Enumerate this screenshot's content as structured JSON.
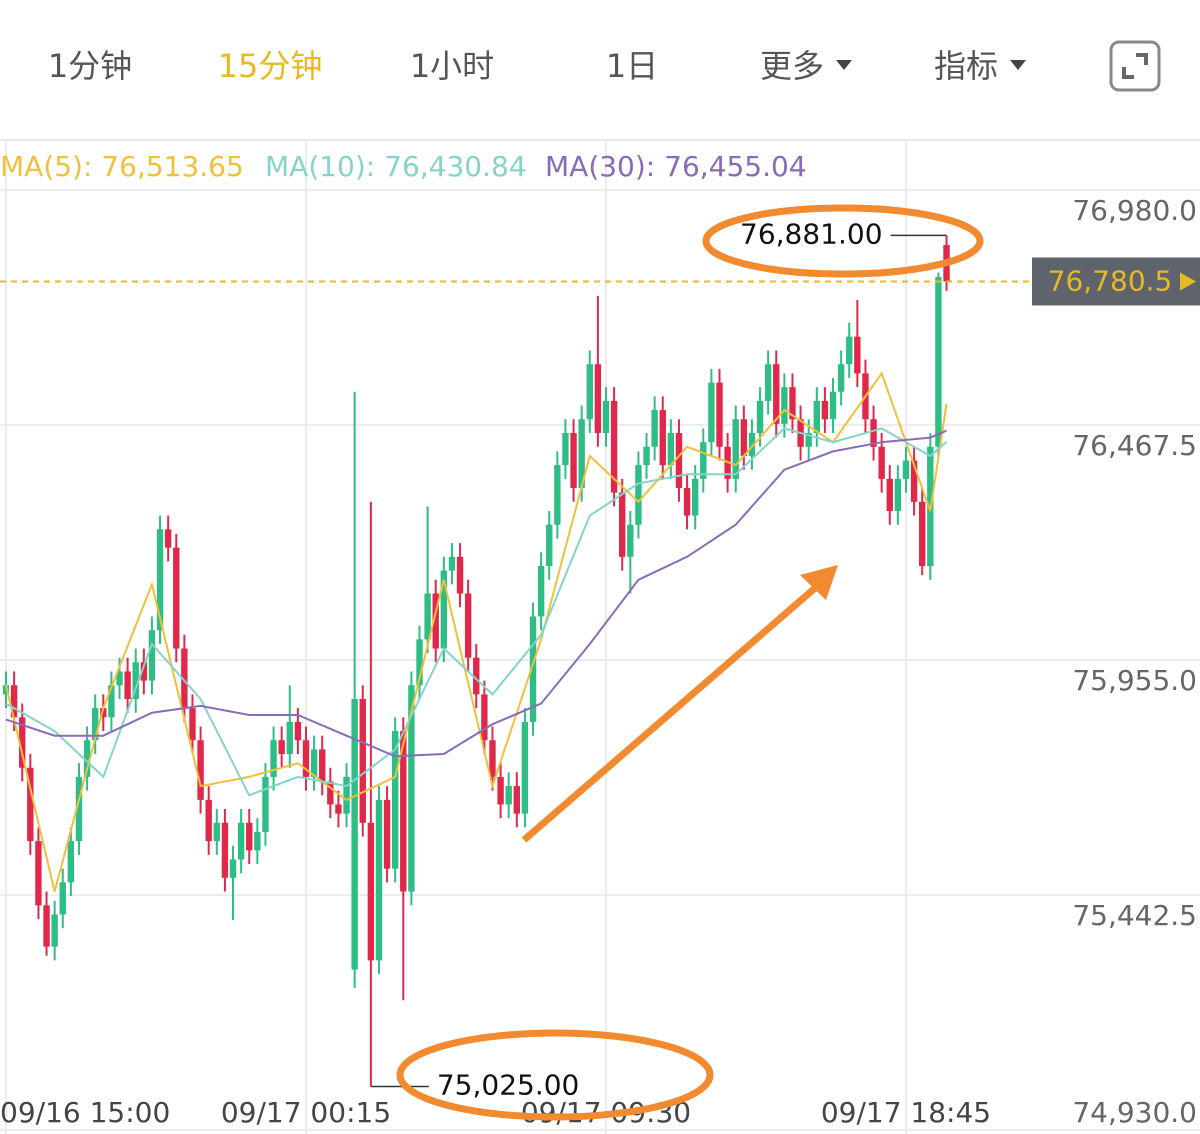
{
  "tabs": [
    "1分钟",
    "15分钟",
    "1小时",
    "1日",
    "更多",
    "指标"
  ],
  "active_tab": 1,
  "chart_data": {
    "type": "candlestick",
    "open": [
      75880,
      75900,
      75830,
      75720,
      75560,
      75420,
      75330,
      75400,
      75470,
      75560,
      75700,
      75780,
      75850,
      75830,
      75900,
      75930,
      75870,
      75950,
      75910,
      76020,
      76240,
      76200,
      75980,
      75850,
      75780,
      75650,
      75560,
      75600,
      75480,
      75520,
      75600,
      75540,
      75580,
      75700,
      75780,
      75750,
      75820,
      75780,
      75700,
      75760,
      75690,
      75640,
      75620,
      75280,
      75870,
      75600,
      75300,
      75650,
      75500,
      75800,
      75450,
      75900,
      76000,
      76100,
      75980,
      76150,
      76180,
      76100,
      75960,
      75880,
      75780,
      75700,
      75640,
      75680,
      75620,
      75820,
      76050,
      76160,
      76250,
      76380,
      76450,
      76330,
      76480,
      76600,
      76450,
      76520,
      76320,
      76180,
      76250,
      76380,
      76420,
      76500,
      76380,
      76450,
      76330,
      76270,
      76350,
      76430,
      76560,
      76420,
      76350,
      76480,
      76400,
      76450,
      76520,
      76600,
      76470,
      76550,
      76480,
      76420,
      76450,
      76520,
      76480,
      76540,
      76600,
      76660,
      76580,
      76480,
      76420,
      76350,
      76280,
      76350,
      76390,
      76300,
      76160,
      76420,
      76860
    ],
    "high": [
      75930,
      75930,
      75860,
      75750,
      75590,
      75450,
      75430,
      75500,
      75590,
      75730,
      75810,
      75880,
      75880,
      75930,
      75960,
      75960,
      75980,
      75980,
      76050,
      76270,
      76270,
      76230,
      76010,
      75880,
      75810,
      75680,
      75630,
      75630,
      75550,
      75630,
      75630,
      75610,
      75730,
      75810,
      75810,
      75900,
      75850,
      75810,
      75790,
      75790,
      75720,
      75670,
      75730,
      76540,
      75900,
      76300,
      75680,
      75680,
      75830,
      75830,
      75930,
      76030,
      76290,
      76130,
      76180,
      76210,
      76210,
      76130,
      75990,
      75910,
      75810,
      75730,
      75710,
      75710,
      75850,
      76080,
      76190,
      76280,
      76410,
      76480,
      76480,
      76510,
      76630,
      76749,
      76550,
      76550,
      76350,
      76280,
      76410,
      76450,
      76530,
      76530,
      76480,
      76480,
      76360,
      76380,
      76460,
      76590,
      76590,
      76450,
      76510,
      76510,
      76480,
      76550,
      76630,
      76630,
      76580,
      76580,
      76510,
      76480,
      76550,
      76550,
      76570,
      76630,
      76690,
      76740,
      76610,
      76510,
      76450,
      76380,
      76380,
      76420,
      76420,
      76330,
      76450,
      76800,
      76881
    ],
    "low": [
      75850,
      75800,
      75690,
      75530,
      75390,
      75310,
      75300,
      75370,
      75440,
      75530,
      75670,
      75750,
      75800,
      75800,
      75870,
      75840,
      75840,
      75880,
      75880,
      75990,
      76170,
      75950,
      75820,
      75750,
      75620,
      75530,
      75530,
      75450,
      75388,
      75490,
      75510,
      75510,
      75550,
      75670,
      75720,
      75720,
      75750,
      75670,
      75670,
      75660,
      75610,
      75590,
      75590,
      75240,
      75570,
      75025,
      75270,
      75470,
      75470,
      75213,
      75420,
      75870,
      75970,
      75950,
      75950,
      76120,
      76070,
      75930,
      75850,
      75750,
      75670,
      75610,
      75610,
      75590,
      75590,
      75790,
      76020,
      76130,
      76220,
      76350,
      76300,
      76300,
      76450,
      76420,
      76420,
      76290,
      76150,
      76100,
      76220,
      76350,
      76390,
      76350,
      76350,
      76300,
      76240,
      76240,
      76320,
      76400,
      76390,
      76320,
      76320,
      76370,
      76370,
      76420,
      76490,
      76440,
      76440,
      76450,
      76390,
      76390,
      76420,
      76450,
      76450,
      76510,
      76570,
      76550,
      76450,
      76390,
      76320,
      76250,
      76250,
      76320,
      76270,
      76140,
      76130,
      76400,
      76760
    ],
    "close": [
      75900,
      75830,
      75720,
      75560,
      75420,
      75330,
      75400,
      75470,
      75560,
      75700,
      75780,
      75850,
      75830,
      75900,
      75930,
      75870,
      75950,
      75910,
      76020,
      76240,
      76200,
      75980,
      75850,
      75780,
      75650,
      75560,
      75600,
      75480,
      75520,
      75600,
      75540,
      75580,
      75700,
      75780,
      75750,
      75820,
      75780,
      75700,
      75760,
      75690,
      75640,
      75620,
      75700,
      75870,
      75600,
      75300,
      75650,
      75500,
      75800,
      75450,
      75900,
      76000,
      76100,
      75980,
      76150,
      76180,
      76100,
      75960,
      75880,
      75780,
      75700,
      75640,
      75680,
      75620,
      75820,
      76050,
      76160,
      76250,
      76380,
      76450,
      76330,
      76480,
      76600,
      76450,
      76520,
      76320,
      76180,
      76250,
      76380,
      76420,
      76500,
      76380,
      76450,
      76330,
      76270,
      76350,
      76430,
      76560,
      76420,
      76350,
      76480,
      76400,
      76450,
      76520,
      76600,
      76470,
      76550,
      76480,
      76420,
      76450,
      76520,
      76480,
      76540,
      76600,
      76660,
      76580,
      76480,
      76420,
      76350,
      76280,
      76350,
      76390,
      76300,
      76160,
      76420,
      76790,
      76780.5
    ],
    "up_color": "#2ebd85",
    "down_color": "#e0294a",
    "series": [
      {
        "name": "MA(5): 76,513.65",
        "color": "#f0c03c",
        "x": [
          0,
          6,
          12,
          18,
          24,
          30,
          36,
          42,
          48,
          54,
          60,
          66,
          72,
          78,
          84,
          90,
          96,
          102,
          108,
          114,
          116
        ],
        "values": [
          75900,
          75450,
          75850,
          76120,
          75680,
          75700,
          75730,
          75650,
          75700,
          76130,
          75680,
          76000,
          76400,
          76300,
          76420,
          76380,
          76500,
          76430,
          76580,
          76280,
          76513.65
        ]
      },
      {
        "name": "MA(10): 76,430.84",
        "color": "#86d3cb",
        "x": [
          0,
          6,
          12,
          18,
          24,
          30,
          36,
          42,
          48,
          54,
          60,
          66,
          72,
          78,
          84,
          90,
          96,
          102,
          108,
          114,
          116
        ],
        "values": [
          75860,
          75800,
          75700,
          75990,
          75870,
          75660,
          75700,
          75680,
          75760,
          75980,
          75880,
          76010,
          76270,
          76340,
          76360,
          76360,
          76460,
          76430,
          76460,
          76400,
          76430.84
        ]
      },
      {
        "name": "MA(30): 76,455.04",
        "color": "#8a6bb8",
        "x": [
          0,
          6,
          12,
          18,
          24,
          30,
          36,
          42,
          48,
          54,
          60,
          66,
          72,
          78,
          84,
          90,
          96,
          102,
          108,
          114,
          116
        ],
        "values": [
          75825,
          75790,
          75790,
          75840,
          75855,
          75835,
          75835,
          75790,
          75745,
          75750,
          75815,
          75860,
          75990,
          76130,
          76180,
          76250,
          76370,
          76410,
          76430,
          76440,
          76455.04
        ]
      }
    ],
    "ylim": [
      74930,
      76980
    ],
    "yticks": [
      {
        "value": 76980,
        "label": "76,980.0"
      },
      {
        "value": 76467.5,
        "label": "76,467.5"
      },
      {
        "value": 75955,
        "label": "75,955.0"
      },
      {
        "value": 75442.5,
        "label": "75,442.5"
      },
      {
        "value": 74930,
        "label": "74,930.0"
      }
    ],
    "xticks": [
      {
        "value": 0,
        "label": "09/16 15:00"
      },
      {
        "value": 37,
        "label": "09/17 00:15"
      },
      {
        "value": 74,
        "label": "09/17 09:30"
      },
      {
        "value": 111,
        "label": "09/17 18:45"
      }
    ],
    "grid": true,
    "last_price": {
      "value": 76780.5,
      "label": "76,780.5"
    },
    "max_label": {
      "value": 76881,
      "label": "76,881.00"
    },
    "min_label": {
      "value": 75025,
      "label": "75,025.00"
    }
  }
}
